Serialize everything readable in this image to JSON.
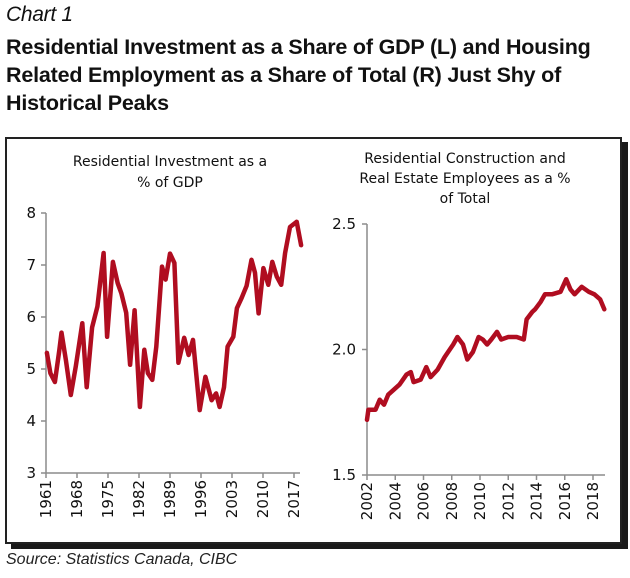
{
  "header": {
    "chart_label": "Chart 1",
    "title": "Residential Investment as a Share of GDP (L) and Housing Related Employment as a Share of Total (R) Just Shy of Historical Peaks"
  },
  "source": "Source: Statistics Canada, CIBC",
  "colors": {
    "line": "#b00d20",
    "axis": "#8c8c8c",
    "frame": "#222222"
  },
  "chart_data": [
    {
      "type": "line",
      "position": "left",
      "title_lines": [
        "Residential Investment as a",
        "% of GDP"
      ],
      "xlabel": "",
      "ylabel": "",
      "xlim": [
        1961,
        2019.5
      ],
      "ylim": [
        3,
        8
      ],
      "y_ticks": [
        "8",
        "7",
        "6",
        "5",
        "4",
        "3"
      ],
      "y_tick_values": [
        8,
        7,
        6,
        5,
        4,
        3
      ],
      "x_ticks": [
        "1961",
        "1968",
        "1975",
        "1982",
        "1989",
        "1996",
        "2003",
        "2010",
        "2017"
      ],
      "x_tick_values": [
        1961,
        1968,
        1975,
        1982,
        1989,
        1996,
        2003,
        2010,
        2017
      ],
      "grid": false,
      "series": [
        {
          "name": "Residential Investment % of GDP",
          "x": [
            1961.2,
            1962.0,
            1963.0,
            1964.0,
            1964.5,
            1965.5,
            1966.6,
            1967.7,
            1969.2,
            1970.2,
            1971.4,
            1972.6,
            1974.0,
            1974.8,
            1976.1,
            1977.2,
            1978.0,
            1979.1,
            1980.0,
            1981.0,
            1982.2,
            1983.2,
            1984.0,
            1985.0,
            1985.9,
            1987.2,
            1988.0,
            1989.0,
            1990.0,
            1990.9,
            1992.2,
            1993.2,
            1994.2,
            1995.7,
            1997.0,
            1998.4,
            1999.4,
            2000.2,
            2001.2,
            2002.0,
            2003.3,
            2004.1,
            2005.2,
            2006.3,
            2007.4,
            2008.2,
            2009.0,
            2010.1,
            2011.2,
            2012.1,
            2013.1,
            2014.1,
            2015.0,
            2016.1,
            2017.6,
            2018.6
          ],
          "values": [
            5.31,
            4.92,
            4.75,
            5.36,
            5.7,
            5.17,
            4.5,
            5.04,
            5.88,
            4.65,
            5.8,
            6.2,
            7.23,
            5.62,
            7.06,
            6.65,
            6.46,
            6.08,
            5.08,
            6.13,
            4.27,
            5.37,
            4.92,
            4.79,
            5.43,
            6.97,
            6.72,
            7.22,
            7.04,
            5.12,
            5.6,
            5.27,
            5.56,
            4.21,
            4.85,
            4.4,
            4.53,
            4.27,
            4.65,
            5.43,
            5.62,
            6.17,
            6.37,
            6.6,
            7.1,
            6.85,
            6.07,
            6.94,
            6.62,
            7.06,
            6.78,
            6.62,
            7.23,
            7.73,
            7.83,
            7.38
          ]
        }
      ]
    },
    {
      "type": "line",
      "position": "right",
      "title_lines": [
        "Residential Construction and",
        "Real Estate Employees as a %",
        "of Total"
      ],
      "xlabel": "",
      "ylabel": "",
      "xlim": [
        2002,
        2018.9
      ],
      "ylim": [
        1.5,
        2.5
      ],
      "y_ticks": [
        "2.5",
        "2.0",
        "1.5"
      ],
      "y_tick_values": [
        2.5,
        2.0,
        1.5
      ],
      "x_ticks": [
        "2002",
        "2004",
        "2006",
        "2008",
        "2010",
        "2012",
        "2014",
        "2016",
        "2018"
      ],
      "x_tick_values": [
        2002,
        2004,
        2006,
        2008,
        2010,
        2012,
        2014,
        2016,
        2018
      ],
      "grid": false,
      "series": [
        {
          "name": "Residential Construction & Real Estate Employees % of Total",
          "x": [
            2002.0,
            2002.1,
            2002.6,
            2002.9,
            2003.2,
            2003.5,
            2003.9,
            2004.3,
            2004.8,
            2005.1,
            2005.3,
            2005.8,
            2006.2,
            2006.5,
            2007.0,
            2007.5,
            2008.1,
            2008.4,
            2008.8,
            2009.1,
            2009.5,
            2009.9,
            2010.2,
            2010.5,
            2010.8,
            2011.2,
            2011.5,
            2012.0,
            2012.6,
            2013.1,
            2013.3,
            2013.7,
            2013.9,
            2014.3,
            2014.6,
            2015.1,
            2015.7,
            2016.1,
            2016.4,
            2016.7,
            2017.2,
            2017.7,
            2018.1,
            2018.5,
            2018.8
          ],
          "values": [
            1.72,
            1.76,
            1.76,
            1.8,
            1.78,
            1.82,
            1.84,
            1.86,
            1.9,
            1.91,
            1.87,
            1.88,
            1.93,
            1.89,
            1.92,
            1.97,
            2.02,
            2.05,
            2.02,
            1.96,
            1.99,
            2.05,
            2.04,
            2.02,
            2.04,
            2.07,
            2.04,
            2.05,
            2.05,
            2.04,
            2.12,
            2.15,
            2.16,
            2.19,
            2.22,
            2.22,
            2.23,
            2.28,
            2.24,
            2.22,
            2.25,
            2.23,
            2.22,
            2.2,
            2.16
          ]
        }
      ]
    }
  ]
}
